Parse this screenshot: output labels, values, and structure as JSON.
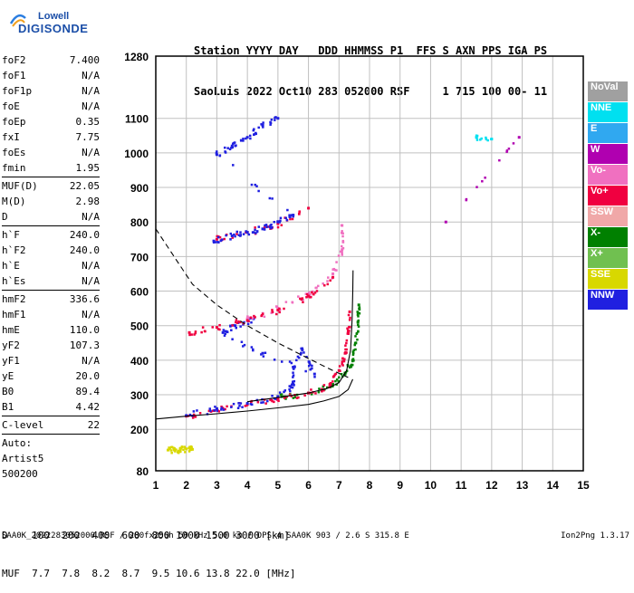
{
  "logo": {
    "line1": "Lowell",
    "line2": "DIGISONDE"
  },
  "header": {
    "line1": "Station YYYY DAY   DDD HHMMSS P1  FFS S AXN PPS IGA PS",
    "line2": "SaoLuis 2022 Oct10 283 052000 RSF     1 715 100 00- 11"
  },
  "params": [
    {
      "name": "foF2",
      "value": "7.400"
    },
    {
      "name": "foF1",
      "value": "N/A"
    },
    {
      "name": "foF1p",
      "value": "N/A"
    },
    {
      "name": "foE",
      "value": "N/A"
    },
    {
      "name": "foEp",
      "value": "0.35"
    },
    {
      "name": "fxI",
      "value": "7.75"
    },
    {
      "name": "foEs",
      "value": "N/A"
    },
    {
      "name": "fmin",
      "value": "1.95",
      "sep": true
    },
    {
      "name": "MUF(D)",
      "value": "22.05"
    },
    {
      "name": "M(D)",
      "value": "2.98"
    },
    {
      "name": "D",
      "value": "N/A",
      "sep": true
    },
    {
      "name": "h`F",
      "value": "240.0"
    },
    {
      "name": "h`F2",
      "value": "240.0"
    },
    {
      "name": "h`E",
      "value": "N/A"
    },
    {
      "name": "h`Es",
      "value": "N/A",
      "sep": true
    },
    {
      "name": "hmF2",
      "value": "336.6"
    },
    {
      "name": "hmF1",
      "value": "N/A"
    },
    {
      "name": "hmE",
      "value": "110.0"
    },
    {
      "name": "yF2",
      "value": "107.3"
    },
    {
      "name": "yF1",
      "value": "N/A"
    },
    {
      "name": "yE",
      "value": "20.0"
    },
    {
      "name": "B0",
      "value": "89.4"
    },
    {
      "name": "B1",
      "value": "4.42",
      "sep": true
    },
    {
      "name": "C-level",
      "value": "22",
      "sep": true
    },
    {
      "name": "Auto:",
      "value": ""
    },
    {
      "name": "Artist5",
      "value": ""
    },
    {
      "name": "500200",
      "value": ""
    }
  ],
  "legend": [
    {
      "label": "NoVal",
      "color": "#a0a0a0"
    },
    {
      "label": "NNE",
      "color": "#00e0f0"
    },
    {
      "label": "E",
      "color": "#30a8f0"
    },
    {
      "label": "W",
      "color": "#b000b0"
    },
    {
      "label": "Vo-",
      "color": "#f070c0"
    },
    {
      "label": "Vo+",
      "color": "#f00040"
    },
    {
      "label": "SSW",
      "color": "#f0a8a8"
    },
    {
      "label": "X-",
      "color": "#008000"
    },
    {
      "label": "X+",
      "color": "#70c050"
    },
    {
      "label": "SSE",
      "color": "#d8d800"
    },
    {
      "label": "NNW",
      "color": "#2020e0"
    }
  ],
  "bottom": {
    "line1": "D    100  200  400  600  800 1000 1500 3000 [km]",
    "line2": "MUF  7.7  7.8  8.2  8.7  9.5 10.6 13.8 22.0 [MHz]"
  },
  "footer_left": "SAA0K_2022283052000.RSF / 280fx256h 50 kHz 5.0 km / DPS-4 SAA0K 903 / 2.6 S 315.8 E",
  "footer_right": "Ion2Png 1.3.17",
  "chart_data": {
    "type": "scatter",
    "xlim": [
      1,
      15
    ],
    "ylim": [
      80,
      1280
    ],
    "x_ticks": [
      1,
      2,
      3,
      4,
      5,
      6,
      7,
      8,
      9,
      10,
      11,
      12,
      13,
      14,
      15
    ],
    "y_ticks": [
      80,
      200,
      300,
      400,
      500,
      600,
      700,
      800,
      900,
      1000,
      1100,
      1280
    ],
    "grid": true,
    "traces": [
      {
        "name": "X-",
        "color": "#008000",
        "points": [
          [
            5,
            292
          ],
          [
            6,
            305
          ],
          [
            6.8,
            330
          ],
          [
            7.2,
            360
          ],
          [
            7.45,
            400
          ],
          [
            7.55,
            450
          ],
          [
            7.62,
            510
          ],
          [
            7.65,
            560
          ]
        ]
      },
      {
        "name": "Vo+",
        "color": "#f00040",
        "points": [
          [
            2,
            238
          ],
          [
            3,
            258
          ],
          [
            4,
            272
          ],
          [
            5,
            290
          ],
          [
            6,
            305
          ],
          [
            6.7,
            330
          ],
          [
            7.0,
            370
          ],
          [
            7.2,
            420
          ],
          [
            7.3,
            480
          ],
          [
            7.35,
            540
          ]
        ]
      },
      {
        "name": "NNW",
        "color": "#2020e0",
        "points": [
          [
            2,
            240
          ],
          [
            3,
            260
          ],
          [
            4,
            275
          ],
          [
            5,
            295
          ],
          [
            5.5,
            330
          ],
          [
            5.5,
            380
          ],
          [
            5.8,
            430
          ],
          [
            6.2,
            360
          ],
          [
            4.5,
            420
          ],
          [
            3.2,
            480
          ],
          [
            3.6,
            500
          ],
          [
            4.2,
            520
          ]
        ]
      },
      {
        "name": "Vo-",
        "color": "#f070c0",
        "points": [
          [
            4,
            520
          ],
          [
            5,
            550
          ],
          [
            6,
            590
          ],
          [
            6.8,
            650
          ],
          [
            7.1,
            720
          ],
          [
            7.1,
            790
          ]
        ]
      },
      {
        "name": "Vo+",
        "color": "#f00040",
        "points": [
          [
            2.1,
            480
          ],
          [
            3,
            495
          ],
          [
            4,
            515
          ],
          [
            5,
            545
          ],
          [
            6,
            585
          ],
          [
            6.8,
            640
          ],
          [
            3,
            750
          ],
          [
            4,
            770
          ],
          [
            5,
            795
          ],
          [
            6,
            840
          ]
        ]
      },
      {
        "name": "NNW",
        "color": "#2020e0",
        "points": [
          [
            2.9,
            745
          ],
          [
            3.5,
            760
          ],
          [
            4,
            770
          ],
          [
            4.5,
            780
          ],
          [
            5,
            800
          ],
          [
            5.5,
            820
          ],
          [
            3,
            995
          ],
          [
            3.5,
            1020
          ],
          [
            4,
            1045
          ],
          [
            4.5,
            1080
          ],
          [
            5,
            1100
          ]
        ]
      },
      {
        "name": "SSE",
        "color": "#d8d800",
        "points": [
          [
            1.4,
            140
          ],
          [
            1.6,
            142
          ],
          [
            1.8,
            141
          ],
          [
            2.0,
            143
          ],
          [
            2.2,
            142
          ]
        ]
      },
      {
        "name": "NNE",
        "color": "#00e0f0",
        "points": [
          [
            11.5,
            1045
          ],
          [
            12,
            1040
          ]
        ]
      },
      {
        "name": "W",
        "color": "#b000b0",
        "points": [
          [
            12.9,
            1045
          ],
          [
            10.5,
            800
          ]
        ]
      }
    ],
    "curves": [
      {
        "name": "O-trace model",
        "style": "solid",
        "points": [
          [
            1,
            230
          ],
          [
            2,
            238
          ],
          [
            3,
            245
          ],
          [
            4,
            253
          ],
          [
            5,
            262
          ],
          [
            6,
            272
          ],
          [
            6.5,
            282
          ],
          [
            7.0,
            295
          ],
          [
            7.3,
            315
          ],
          [
            7.45,
            345
          ]
        ]
      },
      {
        "name": "X-trace model",
        "style": "solid",
        "points": [
          [
            4,
            280
          ],
          [
            5,
            292
          ],
          [
            6,
            305
          ],
          [
            6.6,
            318
          ],
          [
            7.0,
            335
          ],
          [
            7.25,
            370
          ],
          [
            7.38,
            430
          ],
          [
            7.43,
            520
          ],
          [
            7.45,
            600
          ],
          [
            7.46,
            660
          ]
        ]
      },
      {
        "name": "profile",
        "style": "dashed",
        "points": [
          [
            1,
            780
          ],
          [
            1.6,
            700
          ],
          [
            2.2,
            620
          ],
          [
            3,
            560
          ],
          [
            4,
            500
          ],
          [
            5,
            450
          ],
          [
            6,
            405
          ],
          [
            6.8,
            370
          ],
          [
            7.3,
            350
          ]
        ]
      }
    ]
  }
}
